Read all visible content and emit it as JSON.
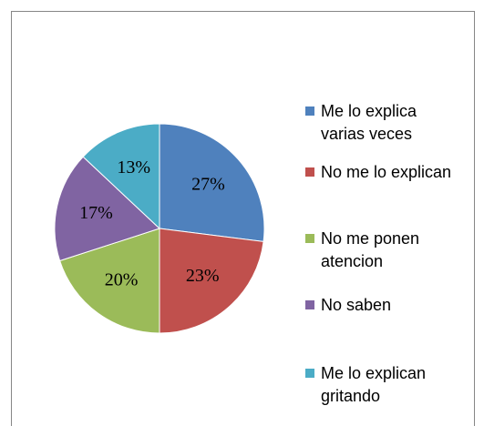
{
  "chart_data": {
    "type": "pie",
    "categories": [
      "Me lo explica varias veces",
      "No me lo explican",
      "No me ponen atencion",
      "No saben",
      "Me lo explican gritando"
    ],
    "values": [
      27,
      23,
      20,
      17,
      13
    ],
    "value_labels": [
      "27%",
      "23%",
      "20%",
      "17%",
      "13%"
    ],
    "colors": [
      "#4f81bd",
      "#c0504d",
      "#9bbb59",
      "#8064a2",
      "#4bacc6"
    ],
    "legend": "right"
  }
}
